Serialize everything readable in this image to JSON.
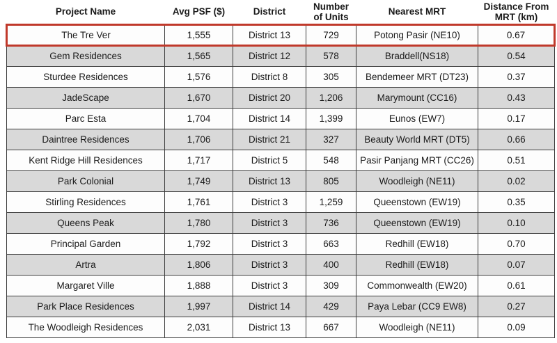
{
  "chart_data": {
    "type": "table",
    "title": "",
    "columns": [
      "Project Name",
      "Avg PSF ($)",
      "District",
      "Number\nof Units",
      "Nearest MRT",
      "Distance From\nMRT (km)"
    ],
    "highlighted_row_index": 0,
    "highlight_color": "#c0392b",
    "stripe_color": "#d9d9d9",
    "grid_color": "#3c3c3c",
    "rows": [
      {
        "project_name": "The Tre Ver",
        "avg_psf": "1,555",
        "district": "District 13",
        "units": "729",
        "nearest_mrt": "Potong Pasir (NE10)",
        "distance_km": "0.67"
      },
      {
        "project_name": "Gem Residences",
        "avg_psf": "1,565",
        "district": "District 12",
        "units": "578",
        "nearest_mrt": "Braddell(NS18)",
        "distance_km": "0.54"
      },
      {
        "project_name": "Sturdee Residences",
        "avg_psf": "1,576",
        "district": "District 8",
        "units": "305",
        "nearest_mrt": "Bendemeer MRT (DT23)",
        "distance_km": "0.37"
      },
      {
        "project_name": "JadeScape",
        "avg_psf": "1,670",
        "district": "District 20",
        "units": "1,206",
        "nearest_mrt": "Marymount (CC16)",
        "distance_km": "0.43"
      },
      {
        "project_name": "Parc Esta",
        "avg_psf": "1,704",
        "district": "District 14",
        "units": "1,399",
        "nearest_mrt": "Eunos (EW7)",
        "distance_km": "0.17"
      },
      {
        "project_name": "Daintree Residences",
        "avg_psf": "1,706",
        "district": "District 21",
        "units": "327",
        "nearest_mrt": "Beauty World MRT (DT5)",
        "distance_km": "0.66"
      },
      {
        "project_name": "Kent Ridge Hill Residences",
        "avg_psf": "1,717",
        "district": "District 5",
        "units": "548",
        "nearest_mrt": "Pasir Panjang MRT (CC26)",
        "distance_km": "0.51"
      },
      {
        "project_name": "Park Colonial",
        "avg_psf": "1,749",
        "district": "District 13",
        "units": "805",
        "nearest_mrt": "Woodleigh (NE11)",
        "distance_km": "0.02"
      },
      {
        "project_name": "Stirling Residences",
        "avg_psf": "1,761",
        "district": "District 3",
        "units": "1,259",
        "nearest_mrt": "Queenstown (EW19)",
        "distance_km": "0.35"
      },
      {
        "project_name": "Queens Peak",
        "avg_psf": "1,780",
        "district": "District 3",
        "units": "736",
        "nearest_mrt": "Queenstown (EW19)",
        "distance_km": "0.10"
      },
      {
        "project_name": "Principal Garden",
        "avg_psf": "1,792",
        "district": "District 3",
        "units": "663",
        "nearest_mrt": "Redhill (EW18)",
        "distance_km": "0.70"
      },
      {
        "project_name": "Artra",
        "avg_psf": "1,806",
        "district": "District 3",
        "units": "400",
        "nearest_mrt": "Redhill (EW18)",
        "distance_km": "0.07"
      },
      {
        "project_name": "Margaret Ville",
        "avg_psf": "1,888",
        "district": "District 3",
        "units": "309",
        "nearest_mrt": "Commonwealth (EW20)",
        "distance_km": "0.61"
      },
      {
        "project_name": "Park Place Residences",
        "avg_psf": "1,997",
        "district": "District 14",
        "units": "429",
        "nearest_mrt": "Paya Lebar (CC9 EW8)",
        "distance_km": "0.27"
      },
      {
        "project_name": "The Woodleigh Residences",
        "avg_psf": "2,031",
        "district": "District 13",
        "units": "667",
        "nearest_mrt": "Woodleigh (NE11)",
        "distance_km": "0.09"
      }
    ]
  }
}
